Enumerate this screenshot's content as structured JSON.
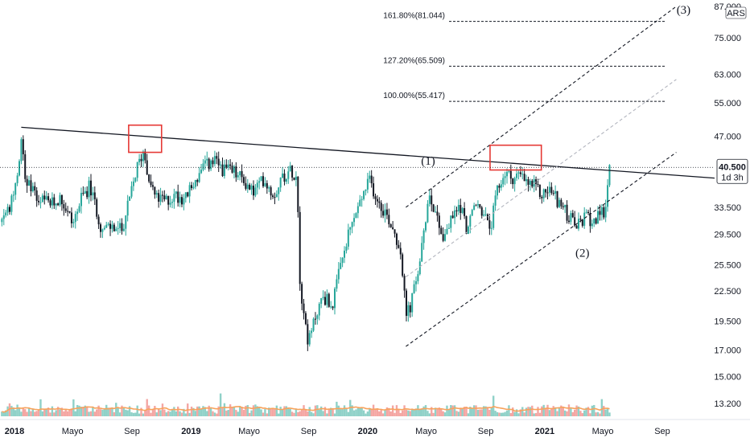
{
  "chart_data": {
    "type": "candlestick",
    "currency": "ARS",
    "y_scale": "log",
    "ylim": [
      12.8,
      87.0
    ],
    "y_ticks": [
      {
        "value": 87.0,
        "label": "87.000"
      },
      {
        "value": 75.0,
        "label": "75.000"
      },
      {
        "value": 63.0,
        "label": "63.000"
      },
      {
        "value": 55.0,
        "label": "55.000"
      },
      {
        "value": 47.0,
        "label": "47.000"
      },
      {
        "value": 40.5,
        "label": "40.500"
      },
      {
        "value": 33.5,
        "label": "33.500"
      },
      {
        "value": 29.5,
        "label": "29.500"
      },
      {
        "value": 25.5,
        "label": "25.500"
      },
      {
        "value": 22.5,
        "label": "22.500"
      },
      {
        "value": 19.5,
        "label": "19.500"
      },
      {
        "value": 17.0,
        "label": "17.000"
      },
      {
        "value": 15.0,
        "label": "15.000"
      },
      {
        "value": 13.2,
        "label": "13.200"
      }
    ],
    "x_ticks": [
      {
        "date": "2018-01-01",
        "label": "2018",
        "bold": true
      },
      {
        "date": "2018-05-01",
        "label": "Mayo",
        "bold": false
      },
      {
        "date": "2018-09-01",
        "label": "Sep",
        "bold": false
      },
      {
        "date": "2019-01-01",
        "label": "2019",
        "bold": true
      },
      {
        "date": "2019-05-01",
        "label": "Mayo",
        "bold": false
      },
      {
        "date": "2019-09-01",
        "label": "Sep",
        "bold": false
      },
      {
        "date": "2020-01-01",
        "label": "2020",
        "bold": true
      },
      {
        "date": "2020-05-01",
        "label": "Mayo",
        "bold": false
      },
      {
        "date": "2020-09-01",
        "label": "Sep",
        "bold": false
      },
      {
        "date": "2021-01-01",
        "label": "2021",
        "bold": true
      },
      {
        "date": "2021-05-01",
        "label": "Mayo",
        "bold": false
      },
      {
        "date": "2021-09-01",
        "label": "Sep",
        "bold": false
      }
    ],
    "last_price": {
      "value": 40.5,
      "label": "40.500",
      "countdown": "1d 3h"
    },
    "price_path": [
      [
        "2017-11-20",
        29.0
      ],
      [
        "2017-12-20",
        33.0
      ],
      [
        "2018-01-05",
        38.0
      ],
      [
        "2018-01-15",
        47.0
      ],
      [
        "2018-01-25",
        38.0
      ],
      [
        "2018-02-10",
        35.5
      ],
      [
        "2018-03-01",
        34.5
      ],
      [
        "2018-03-20",
        34.0
      ],
      [
        "2018-04-05",
        35.0
      ],
      [
        "2018-04-20",
        33.0
      ],
      [
        "2018-05-01",
        31.0
      ],
      [
        "2018-05-20",
        35.0
      ],
      [
        "2018-06-05",
        37.0
      ],
      [
        "2018-06-20",
        33.0
      ],
      [
        "2018-07-01",
        30.0
      ],
      [
        "2018-07-20",
        30.5
      ],
      [
        "2018-08-10",
        30.0
      ],
      [
        "2018-08-25",
        34.0
      ],
      [
        "2018-09-10",
        40.0
      ],
      [
        "2018-09-25",
        44.0
      ],
      [
        "2018-10-05",
        39.0
      ],
      [
        "2018-10-20",
        35.0
      ],
      [
        "2018-11-10",
        34.5
      ],
      [
        "2018-12-01",
        35.5
      ],
      [
        "2018-12-20",
        35.0
      ],
      [
        "2019-01-10",
        38.0
      ],
      [
        "2019-02-01",
        41.0
      ],
      [
        "2019-02-20",
        41.5
      ],
      [
        "2019-03-10",
        40.0
      ],
      [
        "2019-04-01",
        39.5
      ],
      [
        "2019-04-20",
        38.0
      ],
      [
        "2019-05-10",
        36.0
      ],
      [
        "2019-06-01",
        38.5
      ],
      [
        "2019-06-20",
        35.5
      ],
      [
        "2019-07-10",
        39.0
      ],
      [
        "2019-07-30",
        40.0
      ],
      [
        "2019-08-09",
        38.5
      ],
      [
        "2019-08-12",
        25.0
      ],
      [
        "2019-08-20",
        21.0
      ],
      [
        "2019-09-01",
        17.5
      ],
      [
        "2019-09-15",
        20.0
      ],
      [
        "2019-10-01",
        22.0
      ],
      [
        "2019-10-20",
        21.0
      ],
      [
        "2019-11-05",
        25.0
      ],
      [
        "2019-11-25",
        30.0
      ],
      [
        "2019-12-10",
        33.0
      ],
      [
        "2019-12-25",
        36.0
      ],
      [
        "2020-01-05",
        38.0
      ],
      [
        "2020-01-20",
        35.0
      ],
      [
        "2020-02-05",
        33.0
      ],
      [
        "2020-02-25",
        30.0
      ],
      [
        "2020-03-10",
        27.0
      ],
      [
        "2020-03-20",
        20.0
      ],
      [
        "2020-03-30",
        21.0
      ],
      [
        "2020-04-15",
        25.0
      ],
      [
        "2020-04-28",
        30.0
      ],
      [
        "2020-05-05",
        36.0
      ],
      [
        "2020-05-20",
        33.0
      ],
      [
        "2020-06-05",
        29.0
      ],
      [
        "2020-06-25",
        32.0
      ],
      [
        "2020-07-10",
        34.0
      ],
      [
        "2020-07-25",
        30.0
      ],
      [
        "2020-08-10",
        34.0
      ],
      [
        "2020-08-25",
        33.0
      ],
      [
        "2020-09-10",
        30.0
      ],
      [
        "2020-09-25",
        36.0
      ],
      [
        "2020-10-10",
        39.5
      ],
      [
        "2020-10-25",
        38.5
      ],
      [
        "2020-11-10",
        39.0
      ],
      [
        "2020-11-25",
        37.5
      ],
      [
        "2020-12-10",
        37.0
      ],
      [
        "2020-12-25",
        35.5
      ],
      [
        "2021-01-10",
        36.5
      ],
      [
        "2021-01-25",
        35.0
      ],
      [
        "2021-02-10",
        33.0
      ],
      [
        "2021-02-25",
        31.5
      ],
      [
        "2021-03-10",
        30.5
      ],
      [
        "2021-03-25",
        32.0
      ],
      [
        "2021-04-10",
        31.5
      ],
      [
        "2021-04-25",
        32.0
      ],
      [
        "2021-05-05",
        33.0
      ],
      [
        "2021-05-15",
        40.5
      ]
    ],
    "volume_average_color": "#f7a35c",
    "colors": {
      "up": "#26a69a",
      "down": "#131722",
      "volume_up": "#8fd1c8",
      "volume_down": "#f4a6a3",
      "highlight": "#e53935",
      "channel": "#131722",
      "midline": "#b2b5be"
    },
    "fibonacci_levels": [
      {
        "ratio": "161.80%",
        "value": 81.044,
        "label": "161.80%(81.044)"
      },
      {
        "ratio": "127.20%",
        "value": 65.509,
        "label": "127.20%(65.509)"
      },
      {
        "ratio": "100.00%",
        "value": 55.417,
        "label": "100.00%(55.417)"
      }
    ],
    "trendline": {
      "start": [
        "2018-01-15",
        49.0
      ],
      "end": [
        "2021-09-30",
        39.0
      ]
    },
    "channel": {
      "lower_start": [
        "2020-03-20",
        17.3
      ],
      "lower_end": [
        "2021-09-30",
        43.5
      ],
      "upper_start": [
        "2020-03-20",
        33.5
      ],
      "upper_end": [
        "2021-09-30",
        87.0
      ]
    },
    "highlight_boxes": [
      {
        "from": "2018-08-25",
        "to": "2018-11-01",
        "low": 43.5,
        "high": 49.5
      },
      {
        "from": "2020-09-10",
        "to": "2020-12-25",
        "low": 40.0,
        "high": 45.0
      }
    ],
    "wave_labels": [
      {
        "label": "(1)",
        "date": "2020-05-05",
        "value": 41.0
      },
      {
        "label": "(2)",
        "date": "2021-03-20",
        "value": 26.5
      },
      {
        "label": "(3)",
        "date": "2021-10-15",
        "value": 84.0
      }
    ]
  }
}
